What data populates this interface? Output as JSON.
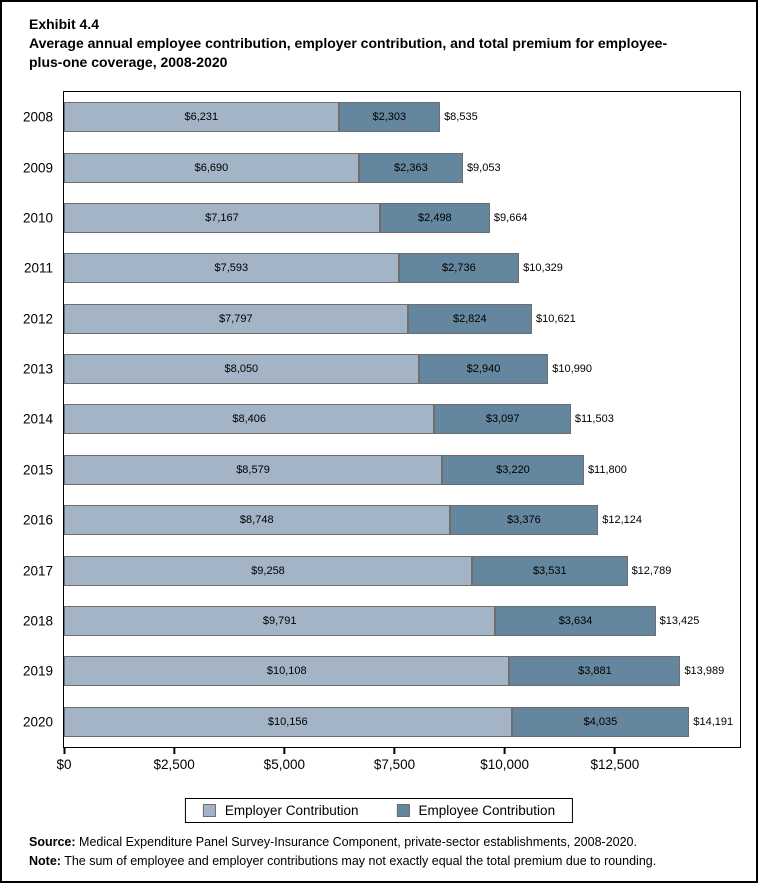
{
  "header": {
    "exhibit": "Exhibit 4.4",
    "title": "Average annual employee contribution, employer contribution, and total premium for employee-plus-one coverage, 2008-2020"
  },
  "chart_data": {
    "type": "bar",
    "orientation": "horizontal",
    "stacked": true,
    "title": "Exhibit 4.4 Average annual employee contribution, employer contribution, and total premium for employee-plus-one coverage, 2008-2020",
    "categories": [
      "2008",
      "2009",
      "2010",
      "2011",
      "2012",
      "2013",
      "2014",
      "2015",
      "2016",
      "2017",
      "2018",
      "2019",
      "2020"
    ],
    "series": [
      {
        "name": "Employer Contribution",
        "color": "#A2B4C6",
        "values": [
          6231,
          6690,
          7167,
          7593,
          7797,
          8050,
          8406,
          8579,
          8748,
          9258,
          9791,
          10108,
          10156
        ]
      },
      {
        "name": "Employee Contribution",
        "color": "#64869E",
        "values": [
          2303,
          2363,
          2498,
          2736,
          2824,
          2940,
          3097,
          3220,
          3376,
          3531,
          3634,
          3881,
          4035
        ]
      }
    ],
    "totals": [
      8535,
      9053,
      9664,
      10329,
      10621,
      10990,
      11503,
      11800,
      12124,
      12789,
      13425,
      13989,
      14191
    ],
    "x_ticks": [
      0,
      2500,
      5000,
      7500,
      10000,
      12500
    ],
    "x_tick_labels": [
      "$0",
      "$2,500",
      "$5,000",
      "$7,500",
      "$10,000",
      "$12,500"
    ],
    "xlim": [
      0,
      15340
    ],
    "grid": false,
    "legend_position": "bottom",
    "bar_border_color": "#6E6E6E"
  },
  "legend": {
    "items": [
      {
        "label": "Employer Contribution",
        "color": "#A2B4C6"
      },
      {
        "label": "Employee Contribution",
        "color": "#64869E"
      }
    ]
  },
  "footer": {
    "source_label": "Source:",
    "source_text": "Medical Expenditure Panel Survey-Insurance Component, private-sector establishments, 2008-2020.",
    "note_label": "Note:",
    "note_text": "The sum of employee and employer contributions may not exactly equal the total premium due to rounding."
  }
}
